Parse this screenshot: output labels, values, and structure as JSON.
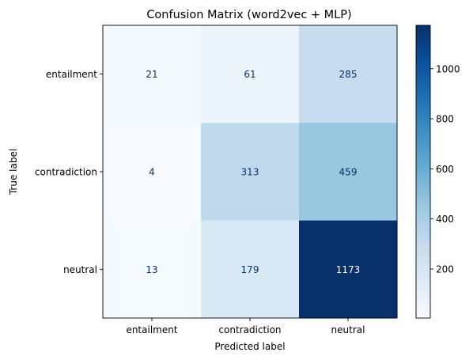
{
  "chart_data": {
    "type": "heatmap",
    "title": "Confusion Matrix (word2vec + MLP)",
    "xlabel": "Predicted label",
    "ylabel": "True label",
    "x_categories": [
      "entailment",
      "contradiction",
      "neutral"
    ],
    "y_categories": [
      "entailment",
      "contradiction",
      "neutral"
    ],
    "values": [
      [
        21,
        61,
        285
      ],
      [
        4,
        313,
        459
      ],
      [
        13,
        179,
        1173
      ]
    ],
    "colormap": "Blues",
    "colorbar": {
      "range": [
        4,
        1173
      ],
      "ticks": [
        200,
        400,
        600,
        800,
        1000
      ],
      "tick_labels": [
        "200",
        "400",
        "600",
        "800",
        "1000"
      ]
    },
    "cell_text_colors": {
      "light_cell": "#08306b",
      "dark_cell": "#ffffff"
    }
  }
}
